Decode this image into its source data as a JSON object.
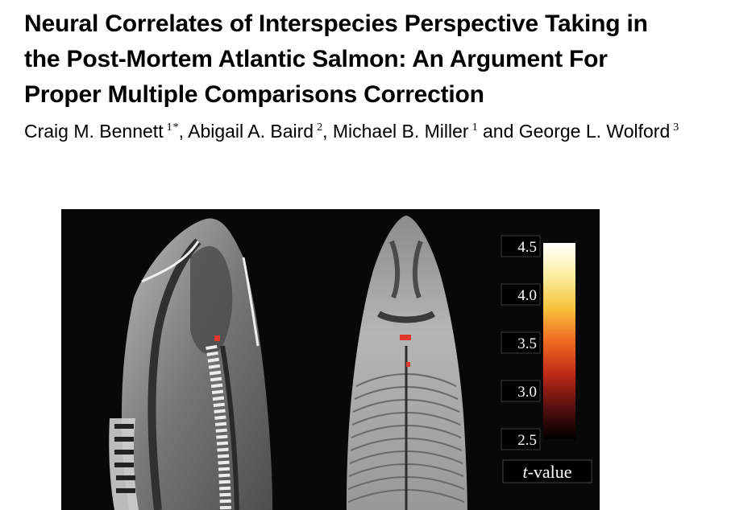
{
  "paper": {
    "title_lines": [
      "Neural Correlates of Interspecies Perspective Taking in",
      "the Post-Mortem Atlantic Salmon: An Argument For",
      "Proper Multiple Comparisons Correction"
    ],
    "authors": [
      {
        "name": "Craig M. Bennett",
        "sup": "1",
        "star": "*",
        "sep": ", "
      },
      {
        "name": "Abigail A. Baird",
        "sup": "2",
        "star": "",
        "sep": ", "
      },
      {
        "name": "Michael B. Miller",
        "sup": "1",
        "star": "",
        "sep": " and "
      },
      {
        "name": "George L. Wolford",
        "sup": "3",
        "star": "",
        "sep": ""
      }
    ]
  },
  "figure": {
    "colorbar": {
      "ticks": [
        "4.5",
        "4.0",
        "3.5",
        "3.0",
        "2.5"
      ],
      "label_italic": "t",
      "label_rest": "-value",
      "min": 2.5,
      "max": 4.5,
      "colors": [
        "#000000",
        "#5a0f0f",
        "#c02a18",
        "#f06a22",
        "#f7c23c",
        "#fbeea0",
        "#ffffff"
      ]
    },
    "activation_color": "#e0382a"
  }
}
